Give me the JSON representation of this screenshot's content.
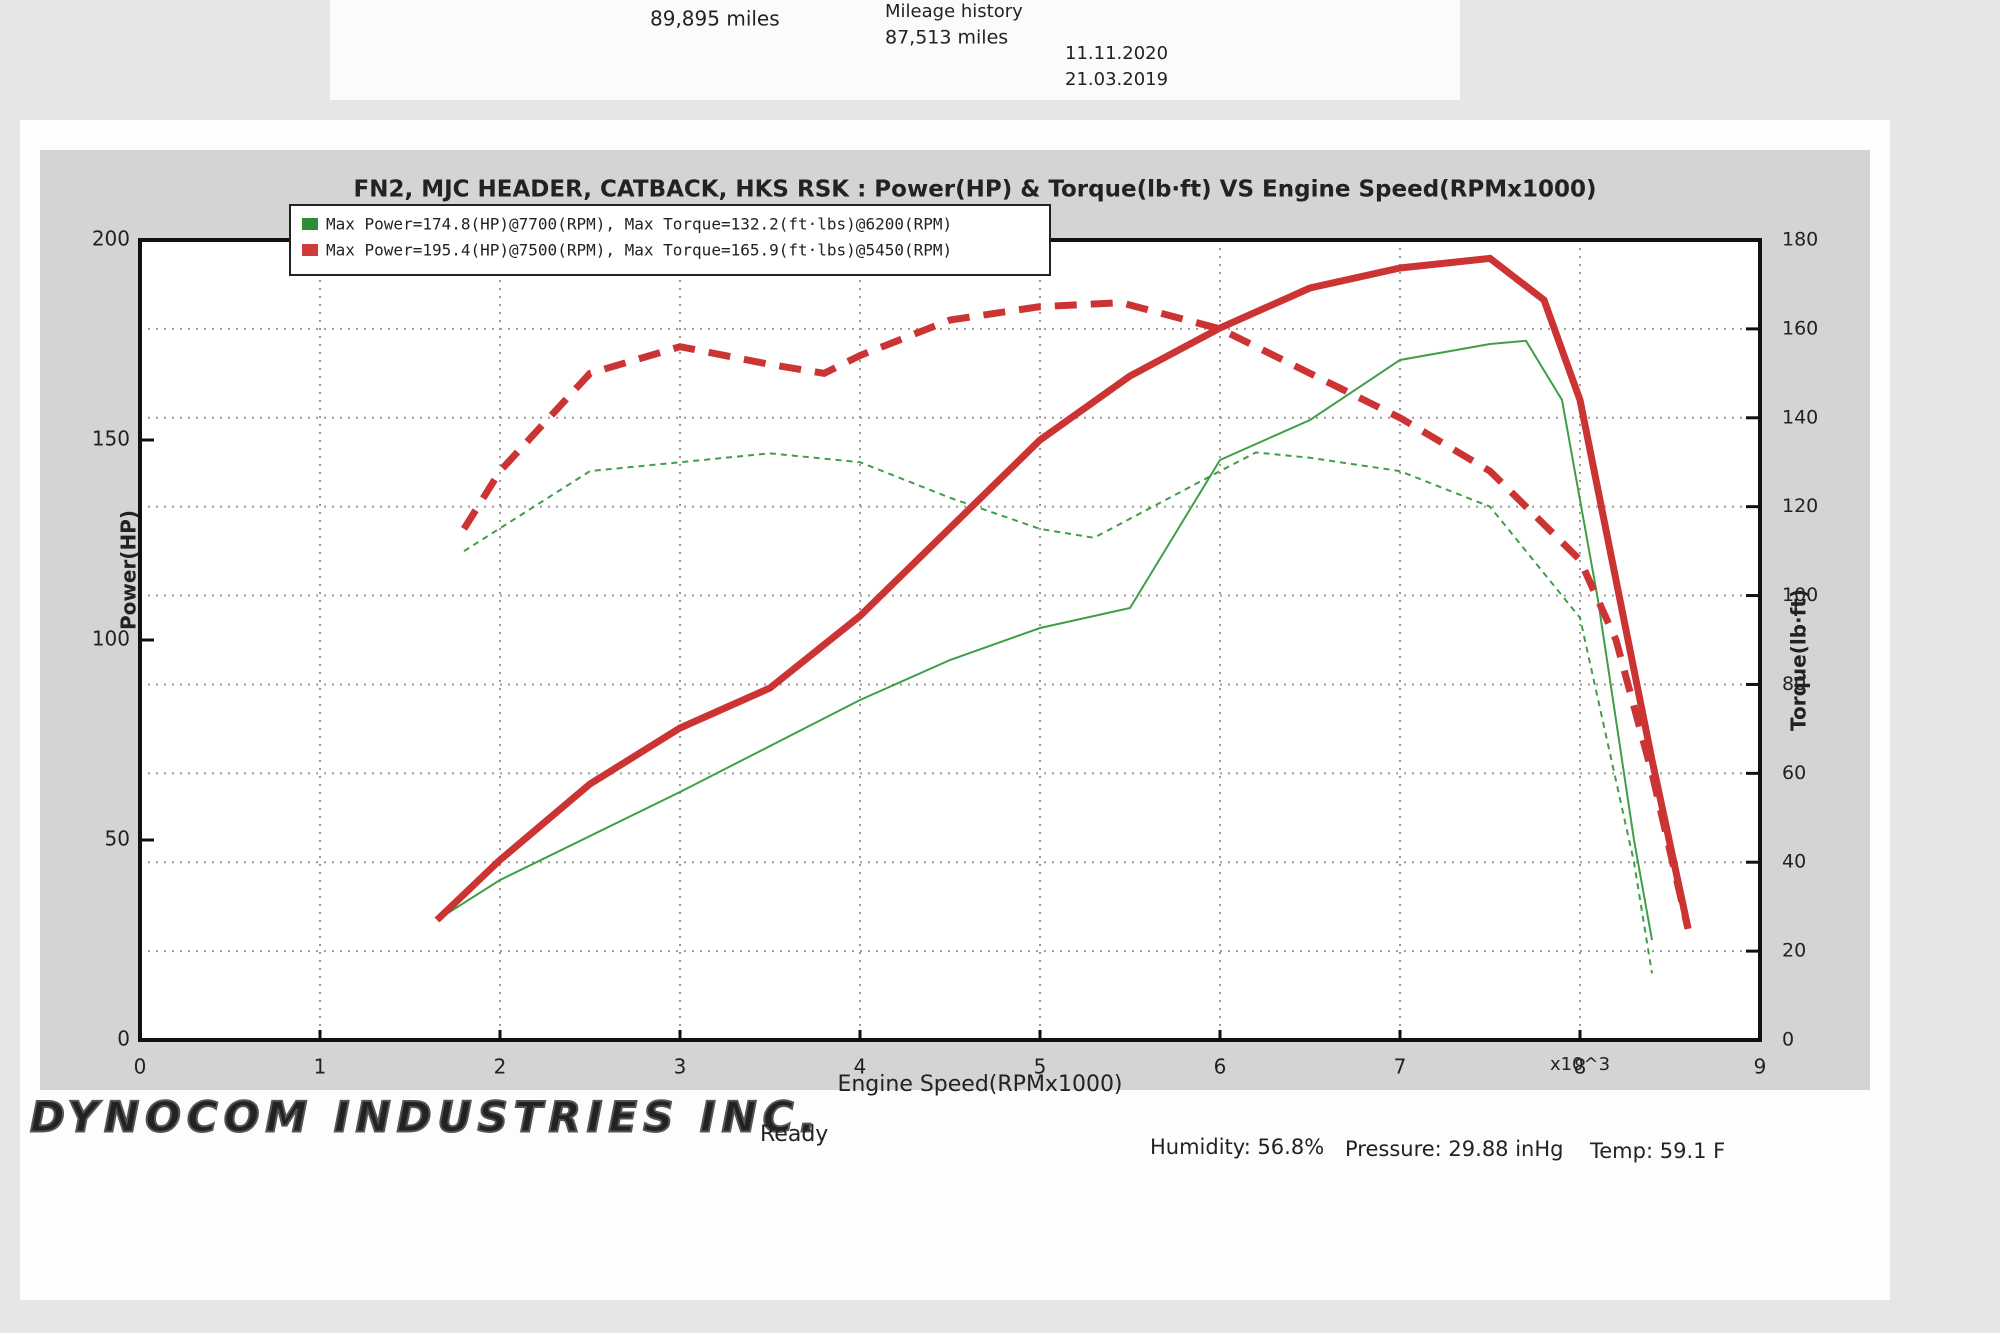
{
  "document": {
    "mileage": [
      "89,895 miles",
      "Mileage history",
      "87,513 miles",
      "11.11.2020",
      "21.03.2019"
    ]
  },
  "chart_data": {
    "type": "line",
    "title": "FN2, MJC HEADER, CATBACK, HKS RSK : Power(HP) & Torque(lb·ft) VS Engine Speed(RPMx1000)",
    "x_label": "Engine Speed(RPMx1000)",
    "x_unit": "x10^3",
    "y_label": "Power(HP)",
    "y2_label": "Torque(lb·ft)",
    "xlim": [
      0,
      9
    ],
    "xticks": [
      0,
      1,
      2,
      3,
      4,
      5,
      6,
      7,
      8,
      9
    ],
    "ylim": [
      0,
      200
    ],
    "yticks": [
      0,
      50,
      100,
      150,
      200
    ],
    "y2lim": [
      0,
      180
    ],
    "y2ticks": [
      0,
      20,
      40,
      60,
      80,
      100,
      120,
      140,
      160,
      180
    ],
    "grid": true,
    "legend": [
      {
        "color": "#2e8b3a",
        "text": "Max Power=174.8(HP)@7700(RPM), Max Torque=132.2(ft·lbs)@6200(RPM)"
      },
      {
        "color": "#d03a3a",
        "text": "Max Power=195.4(HP)@7500(RPM), Max Torque=165.9(ft·lbs)@5450(RPM)"
      }
    ],
    "series": [
      {
        "color": "#3f9e48",
        "style": "solid",
        "weight": "thin",
        "x": [
          1.65,
          2,
          3,
          4,
          4.5,
          5,
          5.5,
          6,
          6.5,
          7,
          7.5,
          7.7,
          7.9,
          8.1,
          8.3,
          8.4
        ],
        "values": [
          30,
          40,
          62,
          85,
          95,
          103,
          108,
          145,
          155,
          170,
          174,
          174.8,
          160,
          110,
          50,
          25
        ]
      },
      {
        "color": "#3f9e48",
        "style": "dashed",
        "weight": "thin",
        "axis": "y2",
        "x": [
          1.8,
          2.5,
          3,
          3.5,
          4,
          4.5,
          5,
          5.3,
          6,
          6.2,
          6.5,
          7,
          7.5,
          8,
          8.3,
          8.4
        ],
        "values": [
          110,
          128,
          130,
          132,
          130,
          122,
          115,
          113,
          128,
          132.2,
          131,
          128,
          120,
          95,
          40,
          15
        ]
      },
      {
        "color": "#cc3333",
        "style": "solid",
        "weight": "thick",
        "x": [
          1.65,
          2,
          2.5,
          3,
          3.5,
          4,
          4.5,
          5,
          5.5,
          6,
          6.5,
          7,
          7.5,
          7.8,
          8,
          8.2,
          8.4,
          8.6
        ],
        "values": [
          30,
          45,
          64,
          78,
          88,
          106,
          128,
          150,
          166,
          178,
          188,
          193,
          195.4,
          185,
          160,
          115,
          70,
          28
        ]
      },
      {
        "color": "#cc3333",
        "style": "dashed",
        "weight": "thick",
        "axis": "y2",
        "x": [
          1.8,
          2,
          2.5,
          3,
          3.5,
          3.8,
          4,
          4.5,
          5,
          5.45,
          6,
          6.5,
          7,
          7.5,
          8,
          8.2,
          8.4,
          8.6
        ],
        "values": [
          115,
          128,
          150,
          156,
          152,
          150,
          154,
          162,
          165,
          165.9,
          160,
          150,
          140,
          128,
          108,
          90,
          60,
          25
        ]
      }
    ],
    "footer": {
      "brand": "DYNOCOM INDUSTRIES INC.",
      "status": "Ready",
      "humidity": "Humidity: 56.8%",
      "pressure": "Pressure: 29.88 inHg",
      "temp": "Temp: 59.1 F"
    }
  }
}
